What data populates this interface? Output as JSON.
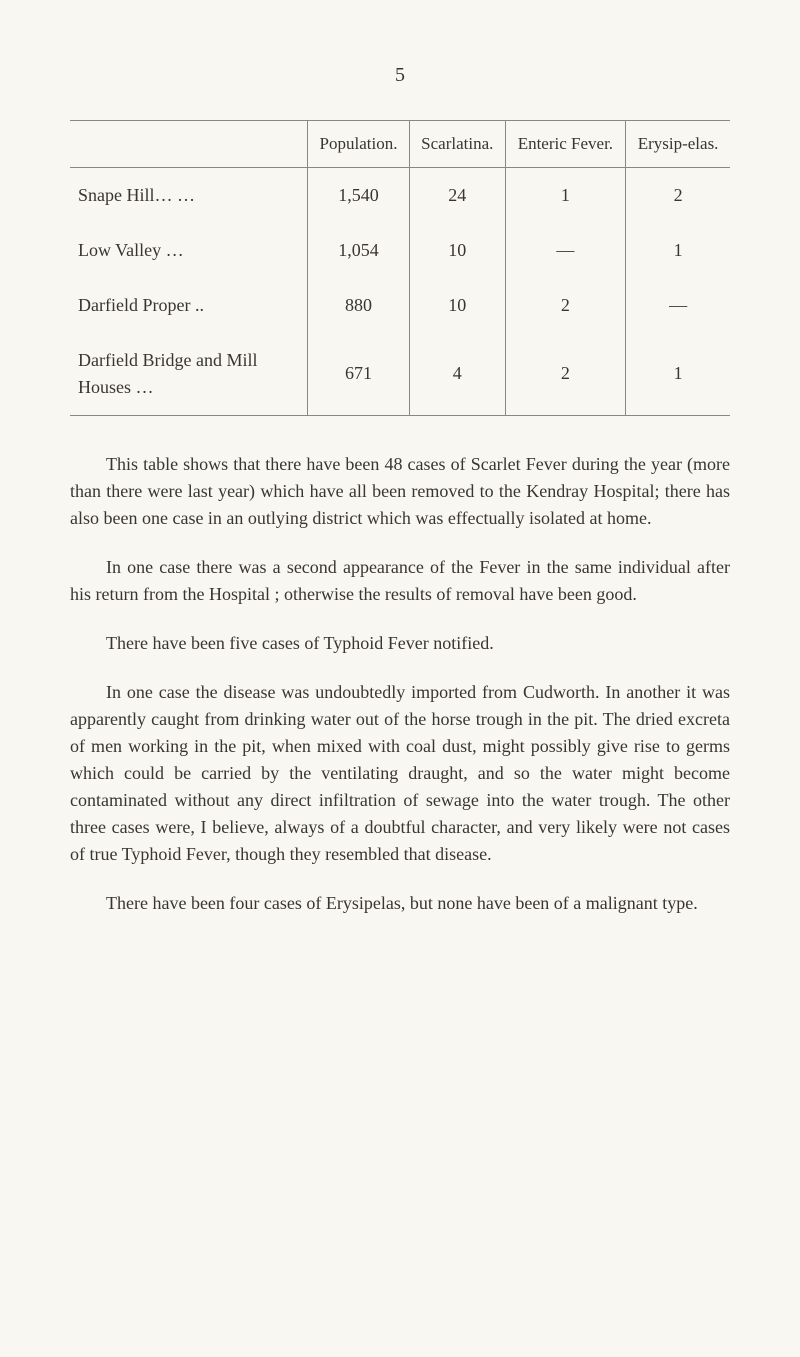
{
  "page_number": "5",
  "table": {
    "headers": [
      "",
      "Population.",
      "Scarlatina.",
      "Enteric Fever.",
      "Erysip-elas."
    ],
    "rows": [
      [
        "Snape Hill…      …",
        "1,540",
        "24",
        "1",
        "2"
      ],
      [
        "Low Valley        …",
        "1,054",
        "10",
        "—",
        "1"
      ],
      [
        "Darfield Proper   ..",
        "880",
        "10",
        "2",
        "—"
      ],
      [
        "Darfield Bridge and Mill Houses    …",
        "671",
        "4",
        "2",
        "1"
      ]
    ]
  },
  "paragraphs": {
    "p1": "This table shows that there have been 48 cases of Scarlet Fever during the year (more than there were last year) which have all been removed to the Kendray Hospital; there has also been one case in an outlying district which was effectually isolated at home.",
    "p2": "In one case there was a second appearance of the Fever in the same individual after his return from the Hospital ; otherwise the results of removal have been good.",
    "p3": "There have been five cases of Typhoid Fever notified.",
    "p4": "In one case the disease was undoubtedly imported from Cudworth. In another it was apparently caught from drinking water out of the horse trough in the pit. The dried excreta of men working in the pit, when mixed with coal dust, might possibly give rise to germs which could be carried by the ventilating draught, and so the water might become contaminated without any direct infiltration of sewage into the water trough. The other three cases were, I believe, always of a doubtful character, and very likely were not cases of true Typhoid Fever, though they resembled that disease.",
    "p5": "There have been four cases of Erysipelas, but none have been of a malignant type."
  }
}
